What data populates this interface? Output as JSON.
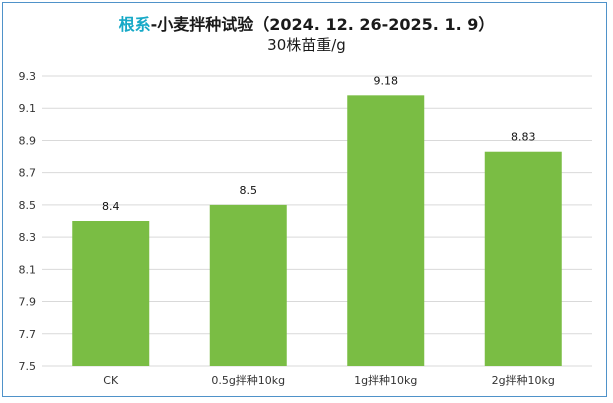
{
  "title": {
    "highlight": "根系",
    "rest": "-小麦拌种试验（2024. 12. 26-2025. 1. 9）",
    "subtitle": "30株苗重/g"
  },
  "colors": {
    "bar": "#7abd44",
    "title_highlight": "#16a9c7",
    "frame_border": "#4f92c9",
    "gridline": "#d9d9d9"
  },
  "chart_data": {
    "type": "bar",
    "title": "根系-小麦拌种试验（2024. 12. 26-2025. 1. 9）",
    "subtitle": "30株苗重/g",
    "xlabel": "",
    "ylabel": "",
    "categories": [
      "CK",
      "0.5g拌种10kg",
      "1g拌种10kg",
      "2g拌种10kg"
    ],
    "values": [
      8.4,
      8.5,
      9.18,
      8.83
    ],
    "value_labels": [
      "8.4",
      "8.5",
      "9.18",
      "8.83"
    ],
    "ylim": [
      7.5,
      9.3
    ],
    "yticks": [
      "7.5",
      "7.7",
      "7.9",
      "8.1",
      "8.3",
      "8.5",
      "8.7",
      "8.9",
      "9.1",
      "9.3"
    ],
    "grid": true,
    "legend": "none"
  }
}
